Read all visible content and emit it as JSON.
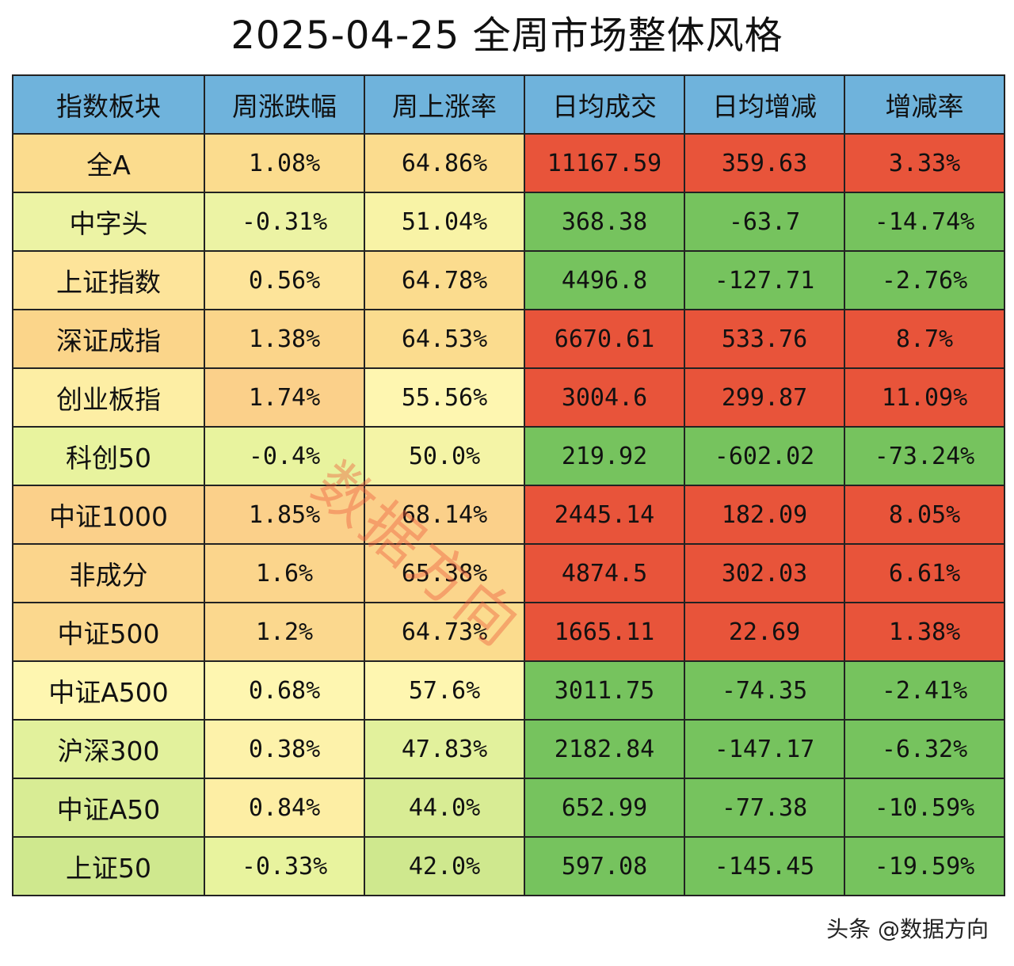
{
  "chart_data": {
    "type": "table",
    "title": "2025-04-25 全周市场整体风格",
    "columns": [
      "指数板块",
      "周涨跌幅",
      "周上涨率",
      "日均成交",
      "日均增减",
      "增减率"
    ],
    "rows": [
      {
        "name": "全A",
        "values": [
          "1.08%",
          "64.86%",
          "11167.59",
          "359.63",
          "3.33%"
        ],
        "colors": [
          "#fbdc8e",
          "#fbdc8e",
          "#fbdc8e",
          "#e8543a",
          "#e8543a",
          "#e8543a"
        ]
      },
      {
        "name": "中字头",
        "values": [
          "-0.31%",
          "51.04%",
          "368.38",
          "-63.7",
          "-14.74%"
        ],
        "colors": [
          "#ecf3a4",
          "#ecf3a4",
          "#f8f3a6",
          "#76c35e",
          "#76c35e",
          "#76c35e"
        ]
      },
      {
        "name": "上证指数",
        "values": [
          "0.56%",
          "64.78%",
          "4496.8",
          "-127.71",
          "-2.76%"
        ],
        "colors": [
          "#fde49a",
          "#fde49a",
          "#fbdc8e",
          "#76c35e",
          "#76c35e",
          "#76c35e"
        ]
      },
      {
        "name": "深证成指",
        "values": [
          "1.38%",
          "64.53%",
          "6670.61",
          "533.76",
          "8.7%"
        ],
        "colors": [
          "#fbd58a",
          "#fbd58a",
          "#fbdc8e",
          "#e8543a",
          "#e8543a",
          "#e8543a"
        ]
      },
      {
        "name": "创业板指",
        "values": [
          "1.74%",
          "55.56%",
          "3004.6",
          "299.87",
          "11.09%"
        ],
        "colors": [
          "#fdeea4",
          "#fbd08a",
          "#fef6b0",
          "#e8543a",
          "#e8543a",
          "#e8543a"
        ]
      },
      {
        "name": "科创50",
        "values": [
          "-0.4%",
          "50.0%",
          "219.92",
          "-602.02",
          "-73.24%"
        ],
        "colors": [
          "#e8f39e",
          "#e8f39e",
          "#f4f4a6",
          "#76c35e",
          "#76c35e",
          "#76c35e"
        ]
      },
      {
        "name": "中证1000",
        "values": [
          "1.85%",
          "68.14%",
          "2445.14",
          "182.09",
          "8.05%"
        ],
        "colors": [
          "#fbd08a",
          "#fbd08a",
          "#fbd08a",
          "#e8543a",
          "#e8543a",
          "#e8543a"
        ]
      },
      {
        "name": "非成分",
        "values": [
          "1.6%",
          "65.38%",
          "4874.5",
          "302.03",
          "6.61%"
        ],
        "colors": [
          "#fbd58c",
          "#fbd58c",
          "#fbd58c",
          "#e8543a",
          "#e8543a",
          "#e8543a"
        ]
      },
      {
        "name": "中证500",
        "values": [
          "1.2%",
          "64.73%",
          "1665.11",
          "22.69",
          "1.38%"
        ],
        "colors": [
          "#fbd88e",
          "#fbd88e",
          "#fbdc8e",
          "#e8543a",
          "#e8543a",
          "#e8543a"
        ]
      },
      {
        "name": "中证A500",
        "values": [
          "0.68%",
          "57.6%",
          "3011.75",
          "-74.35",
          "-2.41%"
        ],
        "colors": [
          "#fef6b0",
          "#fef6b0",
          "#fef6b0",
          "#76c35e",
          "#76c35e",
          "#76c35e"
        ]
      },
      {
        "name": "沪深300",
        "values": [
          "0.38%",
          "47.83%",
          "2182.84",
          "-147.17",
          "-6.32%"
        ],
        "colors": [
          "#e2f19c",
          "#fdf2aa",
          "#e2f19c",
          "#76c35e",
          "#76c35e",
          "#76c35e"
        ]
      },
      {
        "name": "中证A50",
        "values": [
          "0.84%",
          "44.0%",
          "652.99",
          "-77.38",
          "-10.59%"
        ],
        "colors": [
          "#d8ec94",
          "#fdeea4",
          "#d8ec94",
          "#76c35e",
          "#76c35e",
          "#76c35e"
        ]
      },
      {
        "name": "上证50",
        "values": [
          "-0.33%",
          "42.0%",
          "597.08",
          "-145.45",
          "-19.59%"
        ],
        "colors": [
          "#cfe88e",
          "#e8f39e",
          "#cfe88e",
          "#76c35e",
          "#76c35e",
          "#76c35e"
        ]
      }
    ]
  },
  "header_color": "#6fb3dc",
  "watermark": "数据方向",
  "source": "头条 @数据方向"
}
